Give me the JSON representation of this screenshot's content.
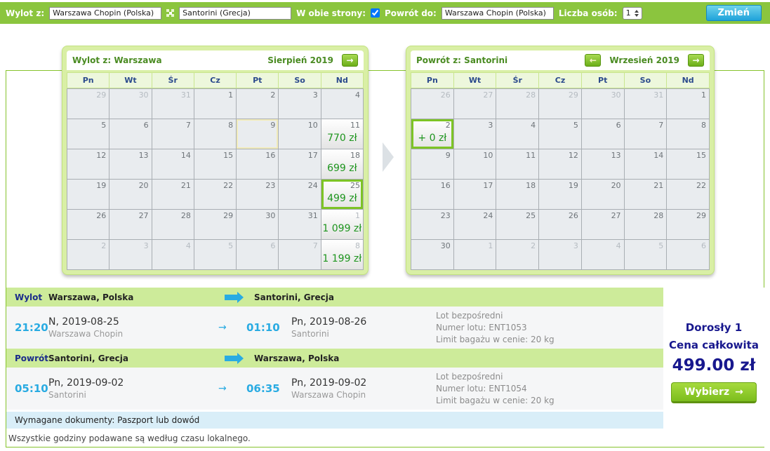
{
  "topbar": {
    "wylot_label": "Wylot z:",
    "from_value": "Warszawa Chopin (Polska)",
    "to_value": "Santorini (Grecja)",
    "both_label": "W obie strony:",
    "both_checked": "checked",
    "powrot_label": "Powrót do:",
    "return_value": "Warszawa Chopin (Polska)",
    "persons_label": "Liczba osób:",
    "persons_value": "1",
    "zmien_label": "Zmień"
  },
  "icons": {
    "prev_arrow": "←",
    "next_arrow": "→",
    "flight_arrow": "→",
    "select_arrow": "→"
  },
  "calendars": {
    "day_names": [
      "Pn",
      "Wt",
      "Śr",
      "Cz",
      "Pt",
      "So",
      "Nd"
    ],
    "outbound": {
      "title_prefix": "Wylot z:",
      "city": "Warszawa",
      "month": "Sierpień 2019",
      "cells": [
        {
          "day": "29",
          "other": true
        },
        {
          "day": "30",
          "other": true
        },
        {
          "day": "31",
          "other": true
        },
        {
          "day": "1"
        },
        {
          "day": "2"
        },
        {
          "day": "3"
        },
        {
          "day": "4"
        },
        {
          "day": "5"
        },
        {
          "day": "6"
        },
        {
          "day": "7"
        },
        {
          "day": "8"
        },
        {
          "day": "9",
          "today": true
        },
        {
          "day": "10"
        },
        {
          "day": "11",
          "price": "770 zł"
        },
        {
          "day": "12"
        },
        {
          "day": "13"
        },
        {
          "day": "14"
        },
        {
          "day": "15"
        },
        {
          "day": "16"
        },
        {
          "day": "17"
        },
        {
          "day": "18",
          "price": "699 zł"
        },
        {
          "day": "19"
        },
        {
          "day": "20"
        },
        {
          "day": "21"
        },
        {
          "day": "22"
        },
        {
          "day": "23"
        },
        {
          "day": "24"
        },
        {
          "day": "25",
          "price": "499 zł",
          "selected": true
        },
        {
          "day": "26"
        },
        {
          "day": "27"
        },
        {
          "day": "28"
        },
        {
          "day": "29"
        },
        {
          "day": "30"
        },
        {
          "day": "31"
        },
        {
          "day": "1",
          "other": true,
          "price": "1 099 zł"
        },
        {
          "day": "2",
          "other": true
        },
        {
          "day": "3",
          "other": true
        },
        {
          "day": "4",
          "other": true
        },
        {
          "day": "5",
          "other": true
        },
        {
          "day": "6",
          "other": true
        },
        {
          "day": "7",
          "other": true
        },
        {
          "day": "8",
          "other": true,
          "price": "1 199 zł"
        }
      ]
    },
    "inbound": {
      "title_prefix": "Powrót z:",
      "city": "Santorini",
      "month": "Wrzesień 2019",
      "cells": [
        {
          "day": "26",
          "other": true
        },
        {
          "day": "27",
          "other": true
        },
        {
          "day": "28",
          "other": true
        },
        {
          "day": "29",
          "other": true
        },
        {
          "day": "30",
          "other": true
        },
        {
          "day": "31",
          "other": true
        },
        {
          "day": "1"
        },
        {
          "day": "2",
          "price": "+ 0 zł",
          "selected": true
        },
        {
          "day": "3"
        },
        {
          "day": "4"
        },
        {
          "day": "5"
        },
        {
          "day": "6"
        },
        {
          "day": "7"
        },
        {
          "day": "8"
        },
        {
          "day": "9"
        },
        {
          "day": "10"
        },
        {
          "day": "11"
        },
        {
          "day": "12"
        },
        {
          "day": "13"
        },
        {
          "day": "14"
        },
        {
          "day": "15"
        },
        {
          "day": "16"
        },
        {
          "day": "17"
        },
        {
          "day": "18"
        },
        {
          "day": "19"
        },
        {
          "day": "20"
        },
        {
          "day": "21"
        },
        {
          "day": "22"
        },
        {
          "day": "23"
        },
        {
          "day": "24"
        },
        {
          "day": "25"
        },
        {
          "day": "26"
        },
        {
          "day": "27"
        },
        {
          "day": "28"
        },
        {
          "day": "29"
        },
        {
          "day": "30"
        },
        {
          "day": "1",
          "other": true
        },
        {
          "day": "2",
          "other": true
        },
        {
          "day": "3",
          "other": true
        },
        {
          "day": "4",
          "other": true
        },
        {
          "day": "5",
          "other": true
        },
        {
          "day": "6",
          "other": true
        }
      ]
    }
  },
  "summary": {
    "outbound_header": {
      "label": "Wylot",
      "from": "Warszawa, Polska",
      "to": "Santorini, Grecja"
    },
    "outbound_flight": {
      "dep_time": "21:20",
      "dep_date": "N, 2019-08-25",
      "dep_airport": "Warszawa Chopin",
      "arr_time": "01:10",
      "arr_date": "Pn, 2019-08-26",
      "arr_airport": "Santorini",
      "details": [
        "Lot bezpośredni",
        "Numer lotu: ENT1053",
        "Limit bagażu w cenie: 20 kg"
      ]
    },
    "return_header": {
      "label": "Powrót",
      "from": "Santorini, Grecja",
      "to": "Warszawa, Polska"
    },
    "return_flight": {
      "dep_time": "05:10",
      "dep_date": "Pn, 2019-09-02",
      "dep_airport": "Santorini",
      "arr_time": "06:35",
      "arr_date": "Pn, 2019-09-02",
      "arr_airport": "Warszawa Chopin",
      "details": [
        "Lot bezpośredni",
        "Numer lotu: ENT1054",
        "Limit bagażu w cenie: 20 kg"
      ]
    },
    "documents_note": "Wymagane dokumenty: Paszport lub dowód",
    "timezone_note": "Wszystkie godziny podawane są według czasu lokalnego.",
    "price_panel": {
      "passengers": "Dorosły 1",
      "total_label": "Cena całkowita",
      "total_price": "499.00 zł",
      "select_label": "Wybierz"
    }
  },
  "colors": {
    "topbar_green": "#8BC53E",
    "accent_cyan": "#29ABE2",
    "price_green": "#1E951E",
    "navy": "#18188E",
    "selected_border": "#7DC425"
  }
}
